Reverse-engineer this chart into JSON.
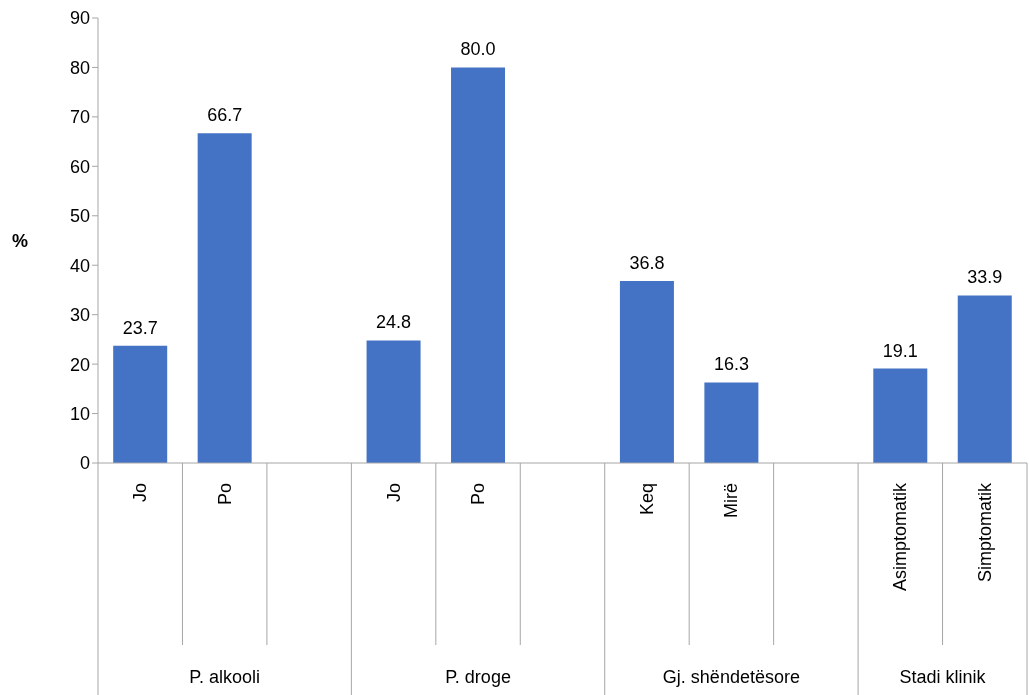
{
  "chart_data": {
    "type": "bar",
    "ylabel": "%",
    "categories": [
      "Jo",
      "Po",
      null,
      "Jo",
      "Po",
      null,
      "Keq",
      "Mirë",
      null,
      "Asimptomatik",
      "Simptomatik"
    ],
    "values": [
      23.7,
      66.7,
      null,
      24.8,
      80.0,
      null,
      36.8,
      16.3,
      null,
      19.1,
      33.9
    ],
    "value_labels": [
      "23.7",
      "66.7",
      null,
      "24.8",
      "80.0",
      null,
      "36.8",
      "16.3",
      null,
      "19.1",
      "33.9"
    ],
    "color": "#4472c4",
    "ylim": [
      0,
      90
    ],
    "yticks": [
      0,
      10,
      20,
      30,
      40,
      50,
      60,
      70,
      80,
      90
    ],
    "annotations": [
      "P. alkooli",
      "P. droge",
      "Gj. shëndetësore",
      "Stadi klinik"
    ]
  }
}
